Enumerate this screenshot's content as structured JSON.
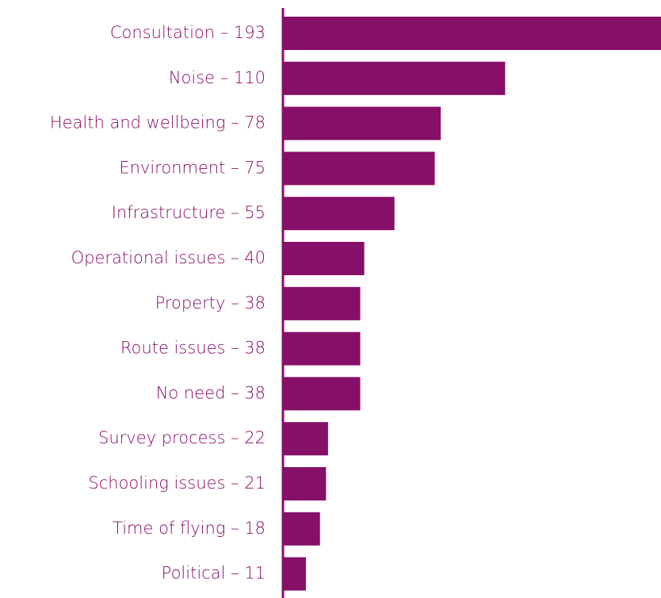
{
  "chart_data": {
    "type": "bar",
    "orientation": "horizontal",
    "categories": [
      "Consultation – 193",
      "Noise – 110",
      "Health and wellbeing – 78",
      "Environment – 75",
      "Infrastructure – 55",
      "Operational issues – 40",
      "Property – 38",
      "Route issues – 38",
      "No need – 38",
      "Survey process – 22",
      "Schooling issues – 21",
      "Time of flying – 18",
      "Political – 11"
    ],
    "values": [
      193,
      110,
      78,
      75,
      55,
      40,
      38,
      38,
      38,
      22,
      21,
      18,
      11
    ],
    "color": "#860f68"
  }
}
